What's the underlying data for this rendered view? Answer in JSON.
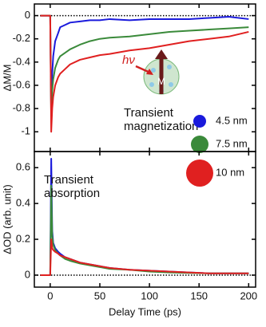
{
  "chart_data": [
    {
      "type": "line",
      "ylabel": "ΔM/M",
      "x": [
        -10,
        -2,
        0,
        1,
        2,
        3,
        5,
        8,
        10,
        15,
        20,
        30,
        40,
        50,
        60,
        80,
        100,
        120,
        140,
        160,
        180,
        200
      ],
      "xlim": [
        -16,
        207
      ],
      "xticks": [
        0,
        50,
        100,
        150,
        200
      ],
      "ylim": [
        -1.17,
        0.1
      ],
      "yticks": [
        0,
        -0.2,
        -0.4,
        -0.6,
        -0.8,
        -1
      ],
      "zero_line": true,
      "annotation": [
        "Transient",
        "magnetization"
      ],
      "inset_labels": [
        "hν",
        "M"
      ],
      "series": [
        {
          "name": "4.5 nm",
          "color": "#1a1adc",
          "values": [
            0,
            0,
            0,
            -0.85,
            -0.5,
            -0.35,
            -0.22,
            -0.15,
            -0.1,
            -0.08,
            -0.06,
            -0.05,
            -0.04,
            -0.04,
            -0.03,
            -0.04,
            -0.03,
            -0.03,
            -0.03,
            -0.02,
            -0.01,
            -0.03
          ]
        },
        {
          "name": "7.5 nm",
          "color": "#3a8a3a",
          "values": [
            0,
            0,
            0,
            -0.9,
            -0.65,
            -0.55,
            -0.45,
            -0.38,
            -0.35,
            -0.32,
            -0.29,
            -0.25,
            -0.22,
            -0.2,
            -0.19,
            -0.18,
            -0.16,
            -0.14,
            -0.13,
            -0.12,
            -0.11,
            -0.1
          ]
        },
        {
          "name": "10 nm",
          "color": "#e02020",
          "values": [
            0,
            0,
            0,
            -1.0,
            -0.8,
            -0.7,
            -0.6,
            -0.53,
            -0.5,
            -0.46,
            -0.42,
            -0.38,
            -0.36,
            -0.34,
            -0.33,
            -0.3,
            -0.28,
            -0.25,
            -0.22,
            -0.2,
            -0.18,
            -0.14
          ]
        }
      ]
    },
    {
      "type": "line",
      "ylabel": "ΔOD (arb. unit)",
      "xlabel": "Delay Time (ps)",
      "x": [
        -10,
        -2,
        0,
        1,
        2,
        3,
        5,
        8,
        10,
        15,
        20,
        30,
        40,
        50,
        60,
        80,
        100,
        120,
        140,
        160,
        180,
        200
      ],
      "xlim": [
        -16,
        207
      ],
      "xticks": [
        0,
        50,
        100,
        150,
        200
      ],
      "ylim": [
        -0.067,
        0.69
      ],
      "yticks": [
        0,
        0.2,
        0.4,
        0.6
      ],
      "zero_line": true,
      "annotation": [
        "Transient",
        "absorption"
      ],
      "series": [
        {
          "color": "#1a1adc",
          "values": [
            0,
            0,
            0,
            0.65,
            0.25,
            0.18,
            0.15,
            0.13,
            0.12,
            0.1,
            0.09,
            0.07,
            0.06,
            0.05,
            0.04,
            0.03,
            0.025,
            0.02,
            0.015,
            0.01,
            0.01,
            0.01
          ]
        },
        {
          "color": "#3a8a3a",
          "values": [
            0,
            0,
            0,
            0.5,
            0.22,
            0.17,
            0.14,
            0.12,
            0.11,
            0.09,
            0.08,
            0.065,
            0.055,
            0.045,
            0.035,
            0.03,
            0.02,
            0.015,
            0.012,
            0.01,
            0.01,
            0.01
          ]
        },
        {
          "color": "#e02020",
          "values": [
            0,
            0,
            0,
            0.2,
            0.15,
            0.14,
            0.13,
            0.12,
            0.11,
            0.1,
            0.09,
            0.07,
            0.06,
            0.05,
            0.04,
            0.03,
            0.025,
            0.02,
            0.015,
            0.01,
            0.01,
            0.01
          ]
        }
      ]
    }
  ]
}
